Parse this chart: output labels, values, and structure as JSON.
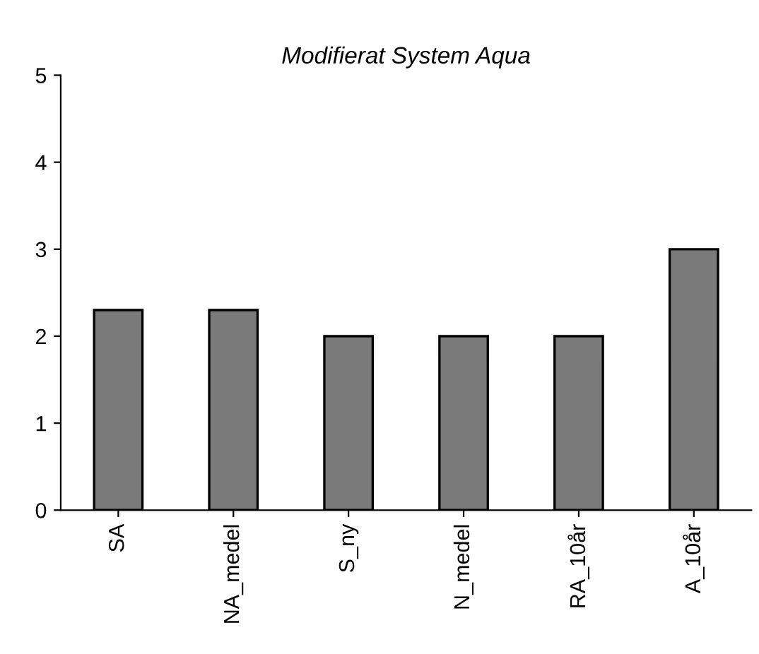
{
  "chart_data": {
    "type": "bar",
    "title": "Modifierat System Aqua",
    "categories": [
      "SA",
      "NA_medel",
      "S_ny",
      "N_medel",
      "RA_10år",
      "A_10år"
    ],
    "values": [
      2.3,
      2.3,
      2.0,
      2.0,
      2.0,
      3.0
    ],
    "color": "#7a7a7a",
    "ylim": [
      0,
      5
    ],
    "yticks": [
      0,
      1,
      2,
      3,
      4,
      5
    ],
    "grid": false,
    "legend": false
  }
}
